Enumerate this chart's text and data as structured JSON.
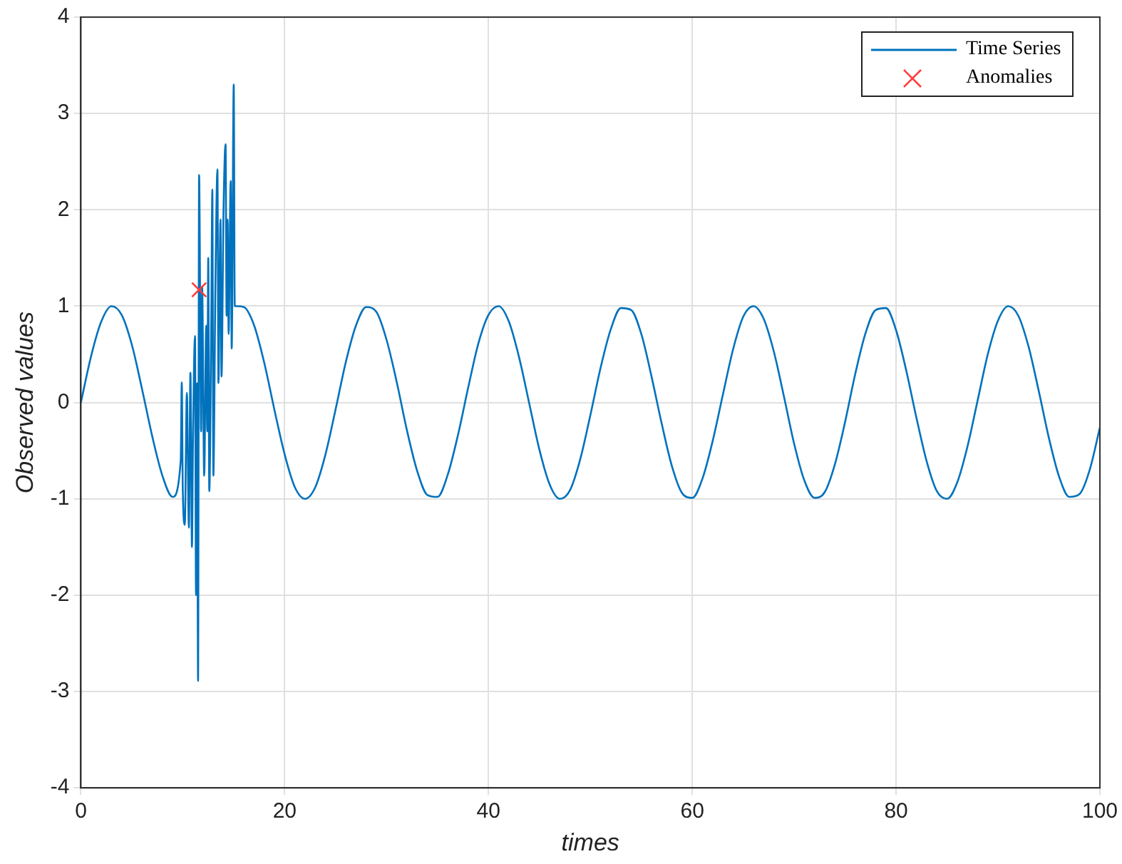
{
  "chart_data": {
    "type": "line",
    "xlabel": "times",
    "ylabel": "Observed values",
    "xlim": [
      0,
      100
    ],
    "ylim": [
      -4,
      4
    ],
    "xticks": [
      0,
      20,
      40,
      60,
      80,
      100
    ],
    "yticks": [
      -4,
      -3,
      -2,
      -1,
      0,
      1,
      2,
      3,
      4
    ],
    "grid": true,
    "legend": "top right",
    "line_style": "solid",
    "series": [
      {
        "name": "Time Series",
        "marker": "none",
        "color": "#0072bd",
        "x": [
          0,
          1,
          2,
          3,
          4,
          5,
          6,
          7,
          8,
          9,
          9.8,
          9.9,
          10,
          10.2,
          10.4,
          10.6,
          10.75,
          10.9,
          11,
          11.2,
          11.3,
          11.4,
          11.5,
          11.6,
          11.8,
          11.9,
          12.1,
          12.3,
          12.4,
          12.5,
          12.6,
          12.8,
          12.9,
          13,
          13.2,
          13.4,
          13.5,
          13.7,
          13.8,
          14,
          14.2,
          14.3,
          14.4,
          14.5,
          14.7,
          14.8,
          15,
          15.1,
          15.3,
          16,
          17,
          18,
          19,
          20,
          21,
          22,
          23,
          24,
          25,
          26,
          27,
          28,
          29,
          30,
          31,
          32,
          33,
          34,
          35,
          36,
          37,
          38,
          39,
          40,
          41,
          42,
          43,
          44,
          45,
          46,
          47,
          48,
          49,
          50,
          51,
          52,
          53,
          54,
          55,
          56,
          57,
          58,
          59,
          60,
          61,
          62,
          63,
          64,
          65,
          66,
          67,
          68,
          69,
          70,
          71,
          72,
          73,
          74,
          75,
          76,
          77,
          78,
          79,
          80,
          81,
          82,
          83,
          84,
          85,
          86,
          87,
          88,
          89,
          90,
          91,
          92,
          93,
          94,
          95,
          96,
          97,
          98,
          99,
          100
        ],
        "values": [
          0,
          0.48,
          0.84,
          1.0,
          0.91,
          0.6,
          0.14,
          -0.35,
          -0.76,
          -0.98,
          -0.6,
          0.21,
          -0.9,
          -1.27,
          0.1,
          -1.3,
          0.31,
          -1.5,
          -0.4,
          0.69,
          -2.0,
          0.2,
          -2.89,
          2.36,
          -0.3,
          1.2,
          -0.76,
          0.8,
          -0.3,
          1.5,
          -0.92,
          0.9,
          2.21,
          -0.76,
          1.2,
          2.42,
          0.2,
          1.9,
          0.27,
          2.0,
          2.68,
          0.9,
          1.9,
          0.71,
          2.3,
          0.56,
          3.3,
          1.0,
          1.0,
          0.99,
          0.8,
          0.41,
          -0.08,
          -0.54,
          -0.88,
          -1.0,
          -0.88,
          -0.54,
          -0.07,
          0.42,
          0.8,
          0.99,
          0.94,
          0.65,
          0.21,
          -0.29,
          -0.71,
          -0.96,
          -0.98,
          -0.75,
          -0.34,
          0.15,
          0.61,
          0.91,
          1.0,
          0.84,
          0.47,
          -0.01,
          -0.49,
          -0.85,
          -1.0,
          -0.91,
          -0.59,
          -0.13,
          0.36,
          0.76,
          0.98,
          0.96,
          0.71,
          0.27,
          -0.22,
          -0.66,
          -0.94,
          -0.99,
          -0.79,
          -0.4,
          0.08,
          0.55,
          0.89,
          1.0,
          0.87,
          0.53,
          0.06,
          -0.43,
          -0.81,
          -0.99,
          -0.93,
          -0.64,
          -0.2,
          0.3,
          0.72,
          0.96,
          0.98,
          0.75,
          0.33,
          -0.16,
          -0.61,
          -0.92,
          -1.0,
          -0.83,
          -0.46,
          0.02,
          0.5,
          0.85,
          1.0,
          0.9,
          0.58,
          0.12,
          -0.37,
          -0.77,
          -0.98,
          -0.95,
          -0.7,
          -0.26
        ]
      },
      {
        "name": "Anomalies",
        "type": "scatter",
        "marker": "cross",
        "color": "#ff3b3b",
        "x": [
          11.6
        ],
        "values": [
          1.17
        ]
      }
    ]
  }
}
